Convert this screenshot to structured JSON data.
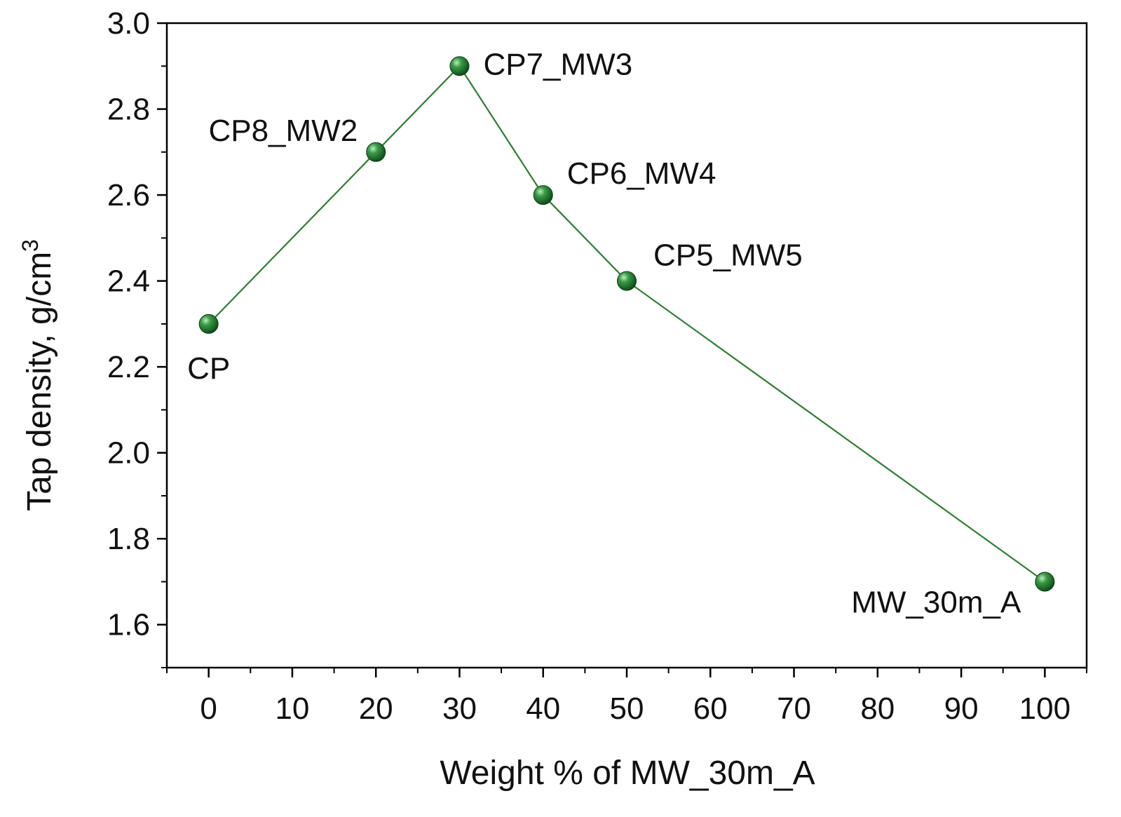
{
  "chart_data": {
    "type": "line",
    "title": "",
    "xlabel": "Weight % of MW_30m_A",
    "ylabel_main": "Tap density, g/cm",
    "ylabel_sup": "3",
    "xlim": [
      -5,
      105
    ],
    "ylim": [
      1.5,
      3.0
    ],
    "xticks": [
      0,
      10,
      20,
      30,
      40,
      50,
      60,
      70,
      80,
      90,
      100
    ],
    "xtick_labels": [
      "0",
      "10",
      "20",
      "30",
      "40",
      "50",
      "60",
      "70",
      "80",
      "90",
      "100"
    ],
    "yticks": [
      1.6,
      1.8,
      2.0,
      2.2,
      2.4,
      2.6,
      2.8,
      3.0
    ],
    "ytick_labels": [
      "1.6",
      "1.8",
      "2.0",
      "2.2",
      "2.4",
      "2.6",
      "2.8",
      "3.0"
    ],
    "series": [
      {
        "name": "Tap density",
        "color": "#2e7d32",
        "x": [
          0,
          20,
          30,
          40,
          50,
          100
        ],
        "y": [
          2.3,
          2.7,
          2.9,
          2.6,
          2.4,
          1.7
        ],
        "labels": [
          "CP",
          "CP8_MW2",
          "CP7_MW3",
          "CP6_MW4",
          "CP5_MW5",
          "MW_30m_A"
        ]
      }
    ]
  }
}
